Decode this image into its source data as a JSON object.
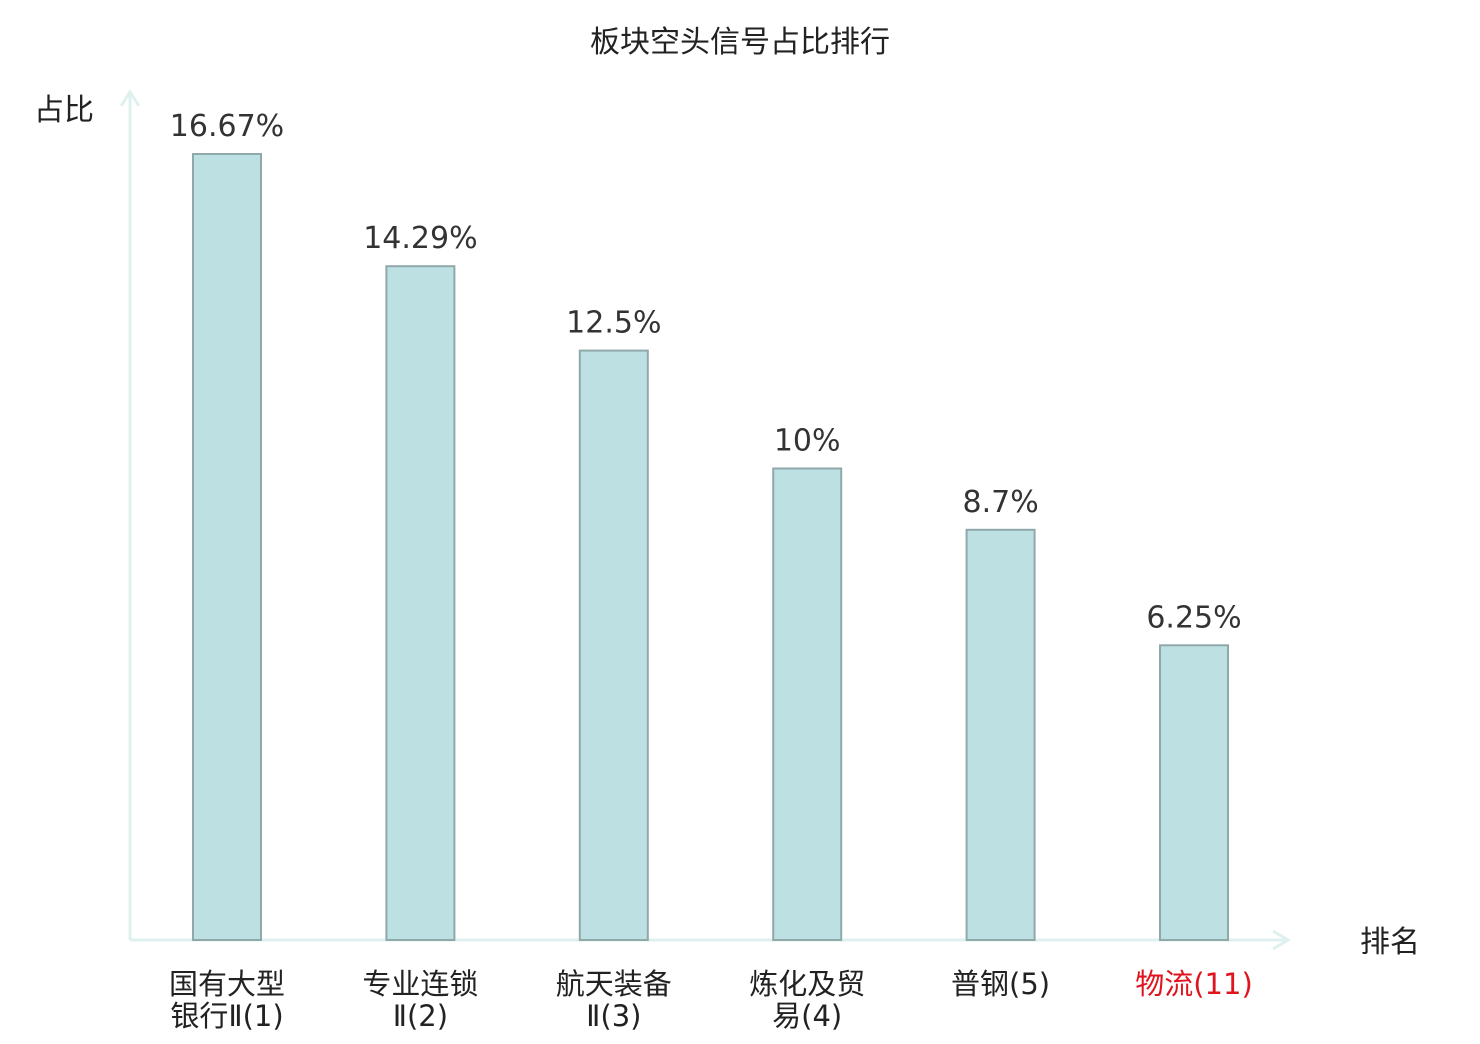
{
  "chart_data": {
    "type": "bar",
    "title": "板块空头信号占比排行",
    "ylabel": "占比",
    "xlabel": "排名",
    "grid": false,
    "legend": "none",
    "ylim": [
      0,
      18.5
    ],
    "categories": [
      {
        "lines": [
          "国有大型",
          "银行Ⅱ(1)"
        ],
        "highlight": false
      },
      {
        "lines": [
          "专业连锁",
          "Ⅱ(2)"
        ],
        "highlight": false
      },
      {
        "lines": [
          "航天装备",
          "Ⅱ(3)"
        ],
        "highlight": false
      },
      {
        "lines": [
          "炼化及贸",
          "易(4)"
        ],
        "highlight": false
      },
      {
        "lines": [
          "普钢(5)"
        ],
        "highlight": false
      },
      {
        "lines": [
          "物流(11)"
        ],
        "highlight": true
      }
    ],
    "values": [
      16.67,
      14.29,
      12.5,
      10,
      8.7,
      6.25
    ],
    "value_labels": [
      "16.67%",
      "14.29%",
      "12.5%",
      "10%",
      "8.7%",
      "6.25%"
    ]
  },
  "colors": {
    "bar_fill": "#bde0e3",
    "bar_stroke": "#8fa9ab",
    "axis": "#dff1ef",
    "text": "#333333",
    "label_text": "#222222",
    "highlight_text": "#e0141e"
  }
}
